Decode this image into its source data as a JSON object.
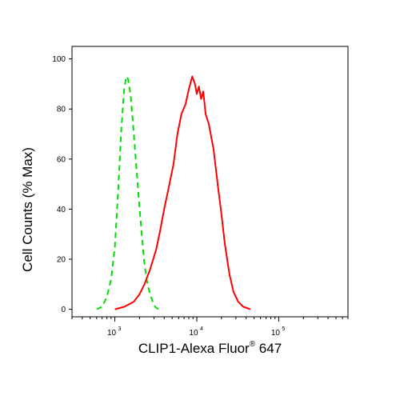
{
  "chart_data": {
    "type": "line",
    "title": "",
    "xlabel": "CLIP1-Alexa Fluor",
    "xlabel_superscript": "®",
    "xlabel_suffix": " 647",
    "ylabel": "Cell Counts (% Max)",
    "xscale": "log",
    "xlim": [
      300,
      700000
    ],
    "ylim": [
      -3,
      105
    ],
    "y_ticks": [
      0,
      20,
      40,
      60,
      80,
      100
    ],
    "x_ticks": [
      {
        "base": "10",
        "exp": "3",
        "value": 1000
      },
      {
        "base": "10",
        "exp": "4",
        "value": 10000
      },
      {
        "base": "10",
        "exp": "5",
        "value": 100000
      }
    ],
    "grid": false,
    "series": [
      {
        "color": "#00dd00",
        "dash": "dashed",
        "points": [
          [
            600,
            0
          ],
          [
            700,
            1
          ],
          [
            800,
            5
          ],
          [
            900,
            12
          ],
          [
            1000,
            25
          ],
          [
            1100,
            48
          ],
          [
            1200,
            72
          ],
          [
            1300,
            88
          ],
          [
            1380,
            93
          ],
          [
            1450,
            92
          ],
          [
            1550,
            86
          ],
          [
            1650,
            76
          ],
          [
            1800,
            60
          ],
          [
            1950,
            45
          ],
          [
            2100,
            32
          ],
          [
            2300,
            18
          ],
          [
            2500,
            10
          ],
          [
            2700,
            6
          ],
          [
            2900,
            3
          ],
          [
            3100,
            1
          ],
          [
            3400,
            0
          ]
        ]
      },
      {
        "color": "#ff0000",
        "dash": "solid",
        "points": [
          [
            1000,
            0
          ],
          [
            1300,
            1
          ],
          [
            1700,
            3
          ],
          [
            2000,
            6
          ],
          [
            2300,
            10
          ],
          [
            2700,
            16
          ],
          [
            3200,
            24
          ],
          [
            3600,
            32
          ],
          [
            4000,
            40
          ],
          [
            4500,
            48
          ],
          [
            5200,
            58
          ],
          [
            5800,
            70
          ],
          [
            6500,
            78
          ],
          [
            7300,
            82
          ],
          [
            8000,
            88
          ],
          [
            8800,
            93
          ],
          [
            9500,
            90
          ],
          [
            10000,
            86
          ],
          [
            10600,
            89
          ],
          [
            11300,
            84
          ],
          [
            12000,
            87
          ],
          [
            12800,
            78
          ],
          [
            14000,
            74
          ],
          [
            16000,
            64
          ],
          [
            18000,
            50
          ],
          [
            20000,
            38
          ],
          [
            22000,
            26
          ],
          [
            25000,
            14
          ],
          [
            28000,
            7
          ],
          [
            32000,
            3
          ],
          [
            37000,
            1
          ],
          [
            45000,
            0
          ]
        ]
      }
    ]
  }
}
